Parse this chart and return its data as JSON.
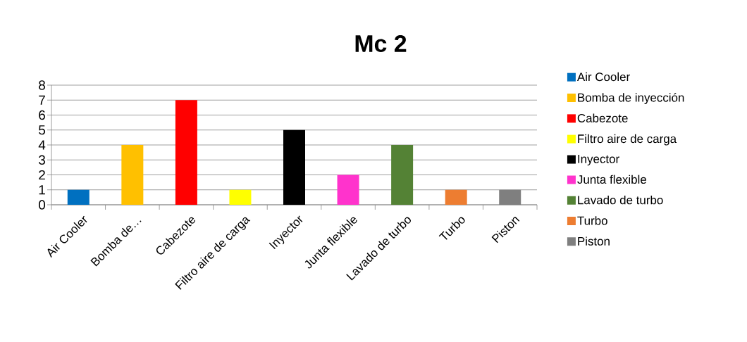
{
  "chart_data": {
    "type": "bar",
    "title": "Mc 2",
    "categories": [
      "Air Cooler",
      "Bomba de…",
      "Cabezote",
      "Filtro aire de carga",
      "Inyector",
      "Junta flexible",
      "Lavado de turbo",
      "Turbo",
      "Piston"
    ],
    "series": [
      {
        "name": "Air Cooler",
        "color": "#0070c0",
        "values": [
          1,
          null,
          null,
          null,
          null,
          null,
          null,
          null,
          null
        ]
      },
      {
        "name": "Bomba de inyección",
        "color": "#ffc000",
        "values": [
          null,
          4,
          null,
          null,
          null,
          null,
          null,
          null,
          null
        ]
      },
      {
        "name": "Cabezote",
        "color": "#ff0000",
        "values": [
          null,
          null,
          7,
          null,
          null,
          null,
          null,
          null,
          null
        ]
      },
      {
        "name": "Filtro aire de carga",
        "color": "#ffff00",
        "values": [
          null,
          null,
          null,
          1,
          null,
          null,
          null,
          null,
          null
        ]
      },
      {
        "name": "Inyector",
        "color": "#000000",
        "values": [
          null,
          null,
          null,
          null,
          5,
          null,
          null,
          null,
          null
        ]
      },
      {
        "name": "Junta flexible",
        "color": "#ff33cc",
        "values": [
          null,
          null,
          null,
          null,
          null,
          2,
          null,
          null,
          null
        ]
      },
      {
        "name": "Lavado de turbo",
        "color": "#548235",
        "values": [
          null,
          null,
          null,
          null,
          null,
          null,
          4,
          null,
          null
        ]
      },
      {
        "name": "Turbo",
        "color": "#ed7d31",
        "values": [
          null,
          null,
          null,
          null,
          null,
          null,
          null,
          1,
          null
        ]
      },
      {
        "name": "Piston",
        "color": "#7f7f7f",
        "values": [
          null,
          null,
          null,
          null,
          null,
          null,
          null,
          null,
          1
        ]
      }
    ],
    "ylim": [
      0,
      8
    ],
    "yticks": [
      0,
      1,
      2,
      3,
      4,
      5,
      6,
      7,
      8
    ],
    "grid": "y",
    "legend": "right"
  }
}
